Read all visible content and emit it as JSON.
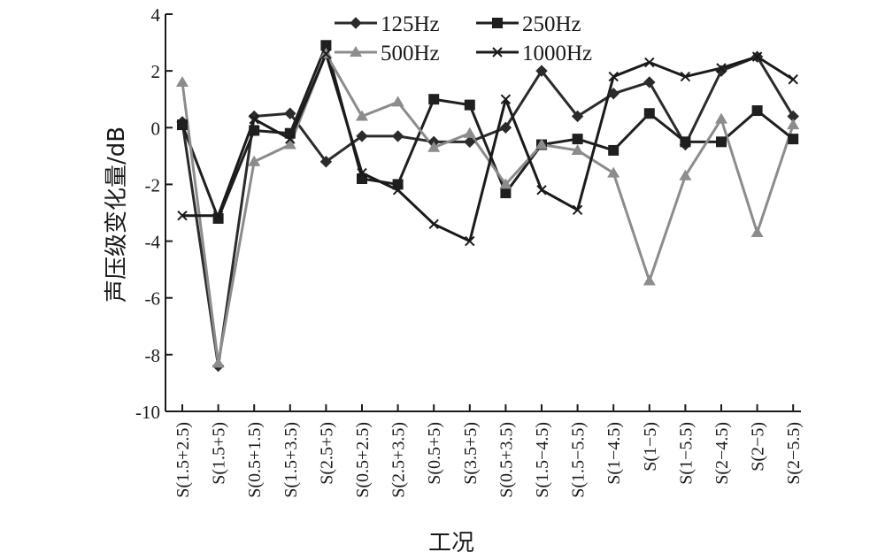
{
  "chart_data": {
    "type": "line",
    "title": "",
    "xlabel": "工况",
    "ylabel": "声压级变化量/dB",
    "ylim": [
      -10,
      4
    ],
    "yticks": [
      4,
      2,
      0,
      -2,
      -4,
      -6,
      -8,
      -10
    ],
    "grid": false,
    "legend_position": "top",
    "categories": [
      "S(1.5+2.5)",
      "S(1.5+5)",
      "S(0.5+1.5)",
      "S(1.5+3.5)",
      "S(2.5+5)",
      "S(0.5+2.5)",
      "S(2.5+3.5)",
      "S(0.5+5)",
      "S(3.5+5)",
      "S(0.5+3.5)",
      "S(1.5−4.5)",
      "S(1.5−5.5)",
      "S(1−4.5)",
      "S(1−5)",
      "S(1−5.5)",
      "S(2−4.5)",
      "S(2−5)",
      "S(2−5.5)"
    ],
    "series": [
      {
        "name": "125Hz",
        "marker": "diamond",
        "color": "#2b2b2b",
        "values": [
          0.2,
          -8.4,
          0.4,
          0.5,
          -1.2,
          -0.3,
          -0.3,
          -0.5,
          -0.5,
          0.0,
          2.0,
          0.4,
          1.2,
          1.6,
          -0.6,
          2.0,
          2.5,
          0.4
        ]
      },
      {
        "name": "250Hz",
        "marker": "square",
        "color": "#1f1f1f",
        "values": [
          0.1,
          -3.2,
          -0.1,
          -0.2,
          2.9,
          -1.8,
          -2.0,
          1.0,
          0.8,
          -2.3,
          -0.6,
          -0.4,
          -0.8,
          0.5,
          -0.5,
          -0.5,
          0.6,
          -0.4
        ]
      },
      {
        "name": "500Hz",
        "marker": "triangle",
        "color": "#8c8c8c",
        "values": [
          1.6,
          -8.3,
          -1.2,
          -0.6,
          2.6,
          0.4,
          0.9,
          -0.7,
          -0.2,
          -2.0,
          -0.6,
          -0.8,
          -1.6,
          -5.4,
          -1.7,
          0.3,
          -3.7,
          0.1
        ]
      },
      {
        "name": "1000Hz",
        "marker": "x",
        "color": "#1a1a1a",
        "values": [
          -3.1,
          -3.1,
          0.3,
          -0.4,
          2.6,
          -1.6,
          -2.2,
          -3.4,
          -4.0,
          1.0,
          -2.2,
          -2.9,
          1.8,
          2.3,
          1.8,
          2.1,
          2.5,
          1.7
        ]
      }
    ]
  }
}
